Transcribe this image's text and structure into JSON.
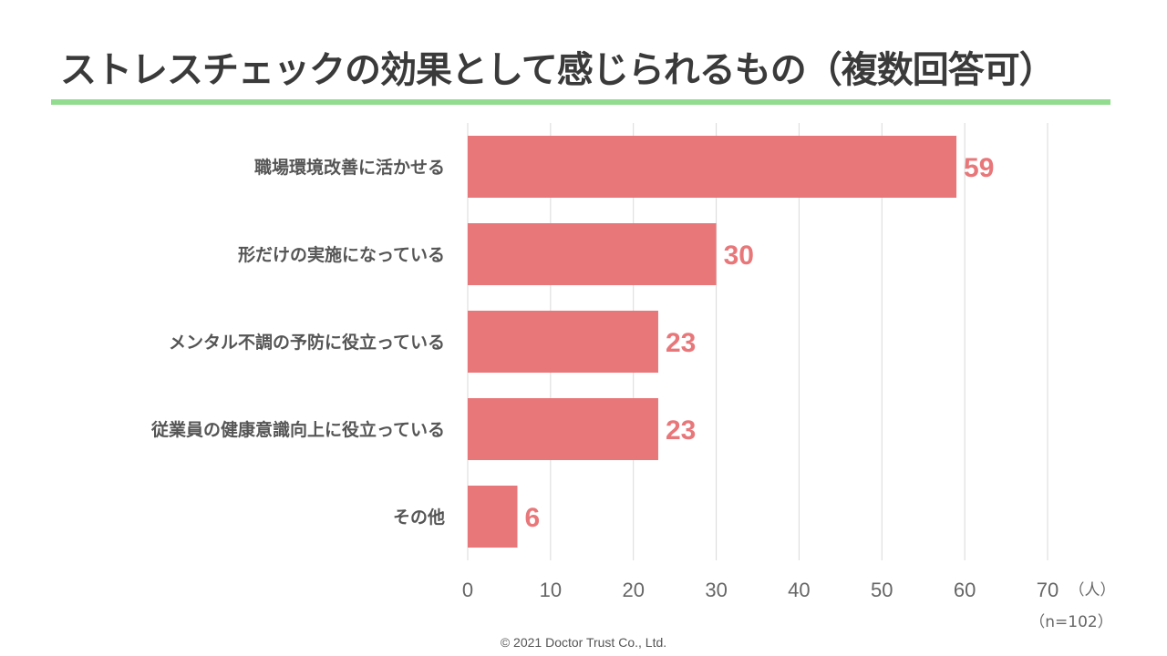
{
  "title": "ストレスチェックの効果として感じられるもの（複数回答可）",
  "copyright": "©  2021 Doctor Trust Co., Ltd.",
  "colors": {
    "bar": "#e8777a",
    "label": "#e8777a",
    "accent_rule": "#92dc8f"
  },
  "chart_data": {
    "type": "bar",
    "orientation": "horizontal",
    "categories": [
      "職場環境改善に活かせる",
      "形だけの実施になっている",
      "メンタル不調の予防に役立っている",
      "従業員の健康意識向上に役立っている",
      "その他"
    ],
    "values": [
      59,
      30,
      23,
      23,
      6
    ],
    "xlim": [
      0,
      70
    ],
    "xticks": [
      0,
      10,
      20,
      30,
      40,
      50,
      60,
      70
    ],
    "unit_label": "（人）",
    "sample_note": "（n=102）",
    "grid": true
  }
}
